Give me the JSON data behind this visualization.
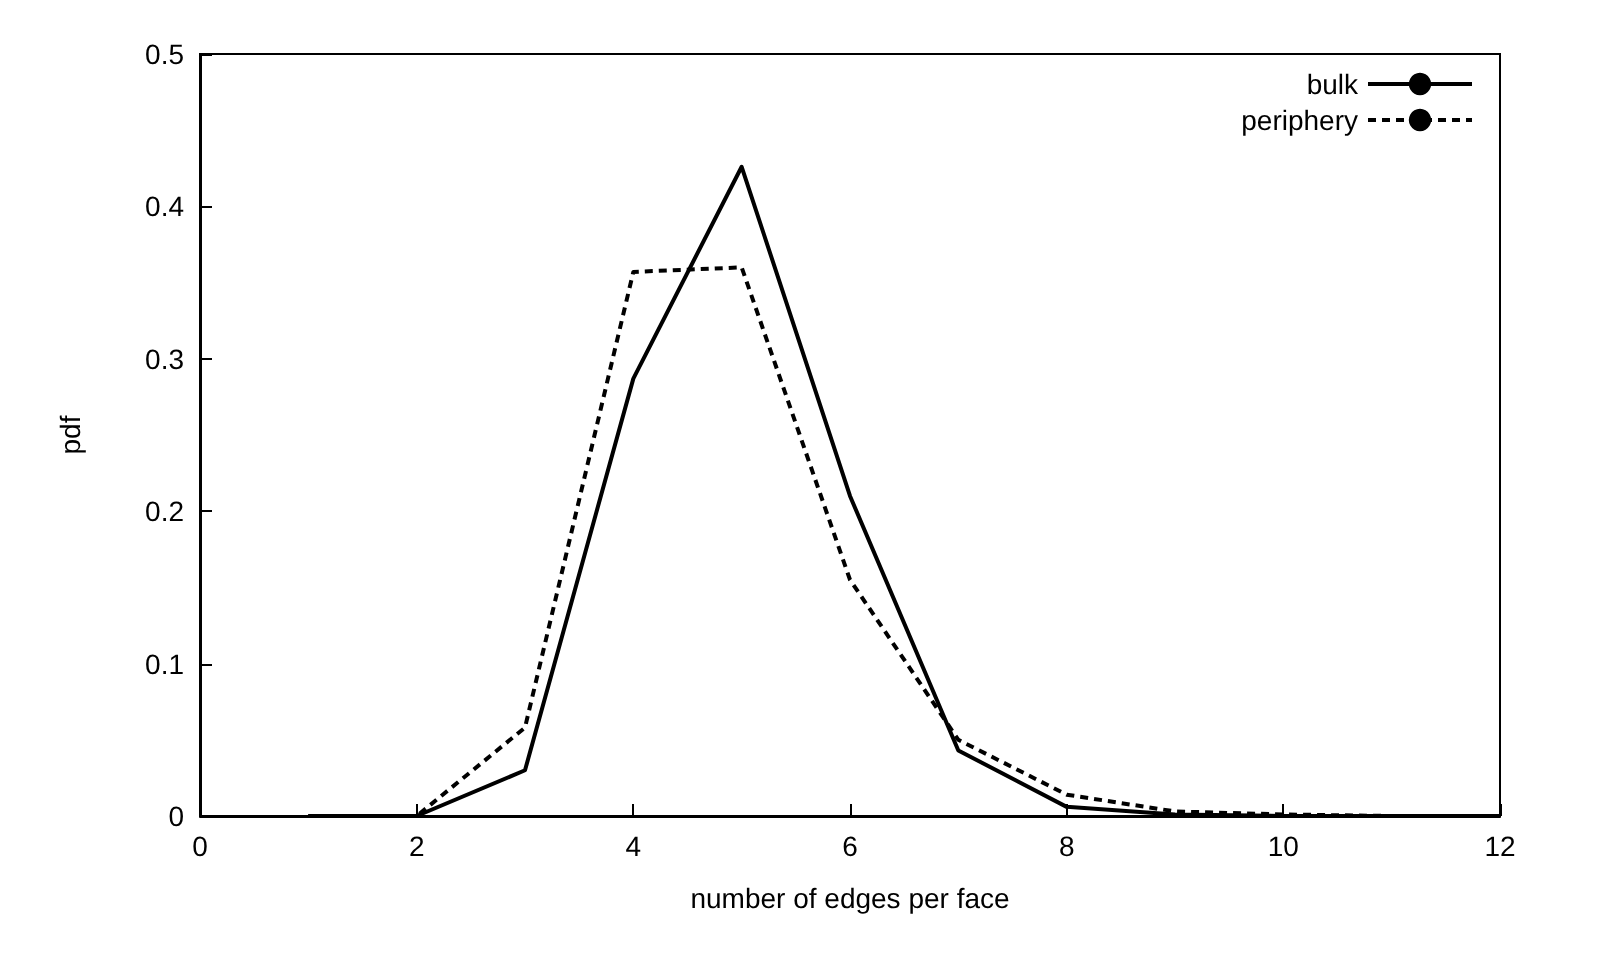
{
  "chart_data": {
    "type": "line",
    "xlabel": "number of edges per face",
    "ylabel": "pdf",
    "x": [
      1,
      2,
      3,
      4,
      5,
      6,
      7,
      8,
      9,
      10,
      11,
      12
    ],
    "series": [
      {
        "name": "bulk",
        "color": "#000000",
        "line_style": "solid",
        "values": [
          0,
          0,
          0.03,
          0.287,
          0.426,
          0.21,
          0.043,
          0.006,
          0.001,
          0,
          0,
          0
        ]
      },
      {
        "name": "periphery",
        "color": "#000000",
        "line_style": "dashed",
        "values": [
          0,
          0,
          0.058,
          0.357,
          0.36,
          0.155,
          0.05,
          0.014,
          0.003,
          0.001,
          0,
          0
        ]
      }
    ],
    "xlim": [
      0,
      12
    ],
    "xticks": [
      0,
      2,
      4,
      6,
      8,
      10,
      12
    ],
    "ylim": [
      0,
      0.5
    ],
    "yticks": [
      0,
      0.1,
      0.2,
      0.3,
      0.4,
      0.5
    ],
    "grid": false,
    "legend": "top right",
    "marker": "none"
  }
}
